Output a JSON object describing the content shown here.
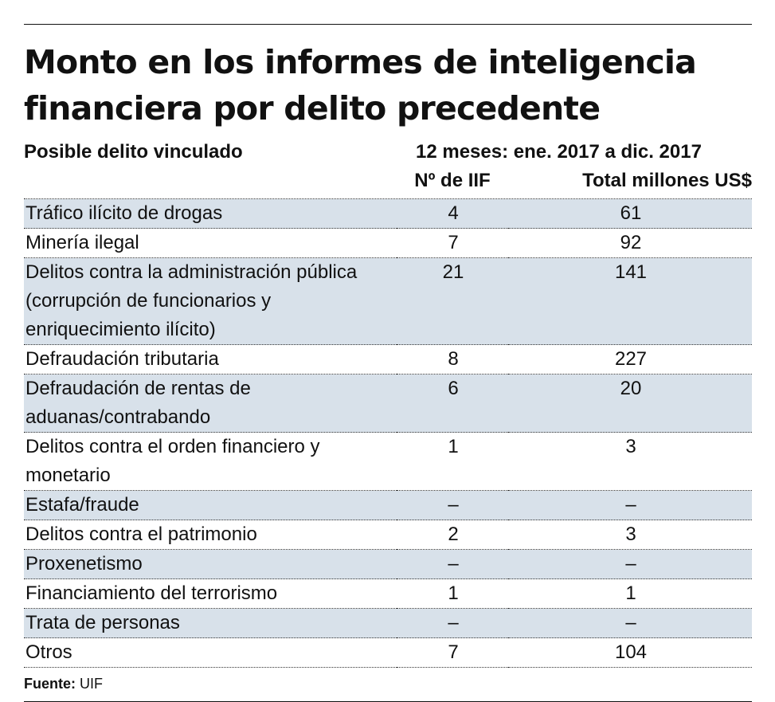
{
  "chart_data": {
    "type": "table",
    "title": "Monto en los informes de inteligencia financiera por delito precedente",
    "row_header": "Posible delito vinculado",
    "period": "12 meses: ene. 2017 a dic. 2017",
    "columns": [
      "Nº de IIF",
      "Total millones US$"
    ],
    "rows": [
      {
        "label": "Tráfico ilícito de drogas",
        "iif": "4",
        "total": "61"
      },
      {
        "label": "Minería ilegal",
        "iif": "7",
        "total": "92"
      },
      {
        "label": "Delitos contra la administración pública (corrupción de funcionarios y enriquecimiento ilícito)",
        "iif": "21",
        "total": "141"
      },
      {
        "label": "Defraudación tributaria",
        "iif": "8",
        "total": "227"
      },
      {
        "label": "Defraudación de rentas de aduanas/contrabando",
        "iif": "6",
        "total": "20"
      },
      {
        "label": "Delitos contra el orden financiero y monetario",
        "iif": "1",
        "total": "3"
      },
      {
        "label": "Estafa/fraude",
        "iif": "–",
        "total": "–"
      },
      {
        "label": "Delitos contra el patrimonio",
        "iif": "2",
        "total": "3"
      },
      {
        "label": "Proxenetismo",
        "iif": "–",
        "total": "–"
      },
      {
        "label": "Financiamiento del terrorismo",
        "iif": "1",
        "total": "1"
      },
      {
        "label": "Trata de personas",
        "iif": "–",
        "total": "–"
      },
      {
        "label": "Otros",
        "iif": "7",
        "total": "104"
      }
    ],
    "source_label": "Fuente:",
    "source": "UIF"
  },
  "colors": {
    "shade": "#d8e1ea",
    "text": "#111111"
  }
}
